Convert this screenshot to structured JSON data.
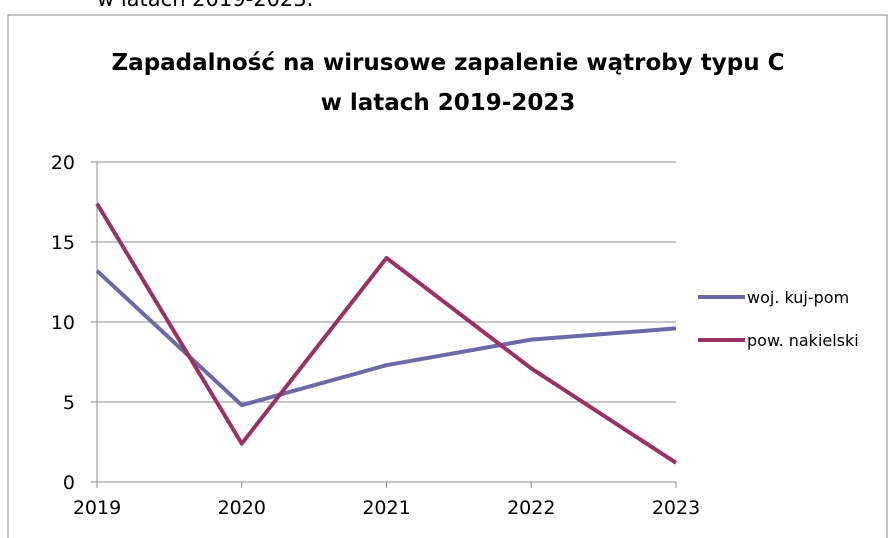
{
  "caption": "w latach 2019-2023.",
  "chart_data": {
    "type": "line",
    "title": [
      "Zapadalność na wirusowe zapalenie wątroby typu C",
      "w latach 2019-2023"
    ],
    "categories": [
      "2019",
      "2020",
      "2021",
      "2022",
      "2023"
    ],
    "series": [
      {
        "name": "woj. kuj-pom",
        "color": "#6b6aa6",
        "values": [
          13.2,
          4.8,
          7.3,
          8.9,
          9.6
        ]
      },
      {
        "name": "pow. nakielski",
        "color": "#993262",
        "values": [
          17.4,
          2.4,
          14.0,
          7.1,
          1.2
        ]
      }
    ],
    "ylim": [
      0,
      20
    ],
    "yticks": [
      0,
      5,
      10,
      15,
      20
    ],
    "grid": true,
    "legend": "right"
  }
}
